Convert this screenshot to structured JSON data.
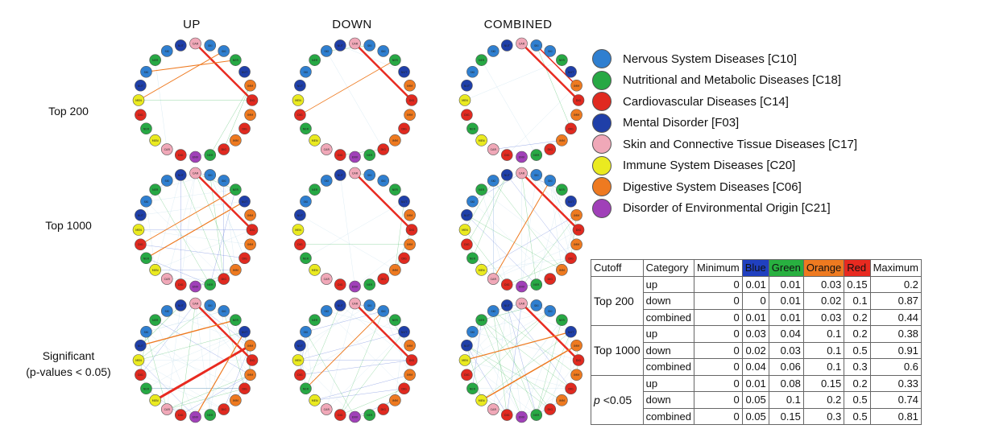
{
  "columns": [
    "UP",
    "DOWN",
    "COMBINED"
  ],
  "rows": [
    {
      "label_lines": [
        "Top 200"
      ]
    },
    {
      "label_lines": [
        "Top 1000"
      ]
    },
    {
      "label_lines": [
        "Significant",
        "(p-values < 0.05)"
      ]
    }
  ],
  "node_labels": [
    "SKI",
    "NER",
    "DIG",
    "NUT",
    "CAR",
    "MEN",
    "IMM",
    "ENV"
  ],
  "legend": [
    {
      "label": "Nervous System Diseases [C10]",
      "color": "#2f7fd0"
    },
    {
      "label": "Nutritional and Metabolic Diseases [C18]",
      "color": "#27a844"
    },
    {
      "label": "Cardiovascular Diseases [C14]",
      "color": "#e02a20"
    },
    {
      "label": "Mental Disorder [F03]",
      "color": "#1f3fa8"
    },
    {
      "label": "Skin and Connective Tissue Diseases [C17]",
      "color": "#f0a8b8"
    },
    {
      "label": "Immune System Diseases [C20]",
      "color": "#eaea20"
    },
    {
      "label": "Digestive System Diseases [C06]",
      "color": "#ee7a20"
    },
    {
      "label": "Disorder of Environmental Origin [C21]",
      "color": "#a040b8"
    }
  ],
  "edge_colors": {
    "Blue": "#3a5ad0",
    "Green": "#28b048",
    "Orange": "#ee7a20",
    "Red": "#e82a20",
    "faint": "#b8d8e8"
  },
  "table": {
    "headers": [
      "Cutoff",
      "Category",
      "Minimum",
      "Blue",
      "Green",
      "Orange",
      "Red",
      "Maximum"
    ],
    "header_colors": {
      "Blue": "#2040c0",
      "Green": "#28b040",
      "Orange": "#ee7a20",
      "Red": "#e82a20"
    },
    "groups": [
      {
        "cutoff": "Top 200",
        "italic_prefix": "",
        "rows": [
          {
            "category": "up",
            "values": [
              "0",
              "0.01",
              "0.01",
              "0.03",
              "0.15",
              "0.2"
            ]
          },
          {
            "category": "down",
            "values": [
              "0",
              "0",
              "0.01",
              "0.02",
              "0.1",
              "0.87"
            ]
          },
          {
            "category": "combined",
            "values": [
              "0",
              "0.01",
              "0.01",
              "0.03",
              "0.2",
              "0.44"
            ]
          }
        ]
      },
      {
        "cutoff": "Top 1000",
        "italic_prefix": "",
        "rows": [
          {
            "category": "up",
            "values": [
              "0",
              "0.03",
              "0.04",
              "0.1",
              "0.2",
              "0.38"
            ]
          },
          {
            "category": "down",
            "values": [
              "0",
              "0.02",
              "0.03",
              "0.1",
              "0.5",
              "0.91"
            ]
          },
          {
            "category": "combined",
            "values": [
              "0",
              "0.04",
              "0.06",
              "0.1",
              "0.3",
              "0.6"
            ]
          }
        ]
      },
      {
        "cutoff": "<0.05",
        "italic_prefix": "p",
        "rows": [
          {
            "category": "up",
            "values": [
              "0",
              "0.01",
              "0.08",
              "0.15",
              "0.2",
              "0.33"
            ]
          },
          {
            "category": "down",
            "values": [
              "0",
              "0.05",
              "0.1",
              "0.2",
              "0.5",
              "0.74"
            ]
          },
          {
            "category": "combined",
            "values": [
              "0",
              "0.05",
              "0.15",
              "0.3",
              "0.5",
              "0.81"
            ]
          }
        ]
      }
    ]
  }
}
